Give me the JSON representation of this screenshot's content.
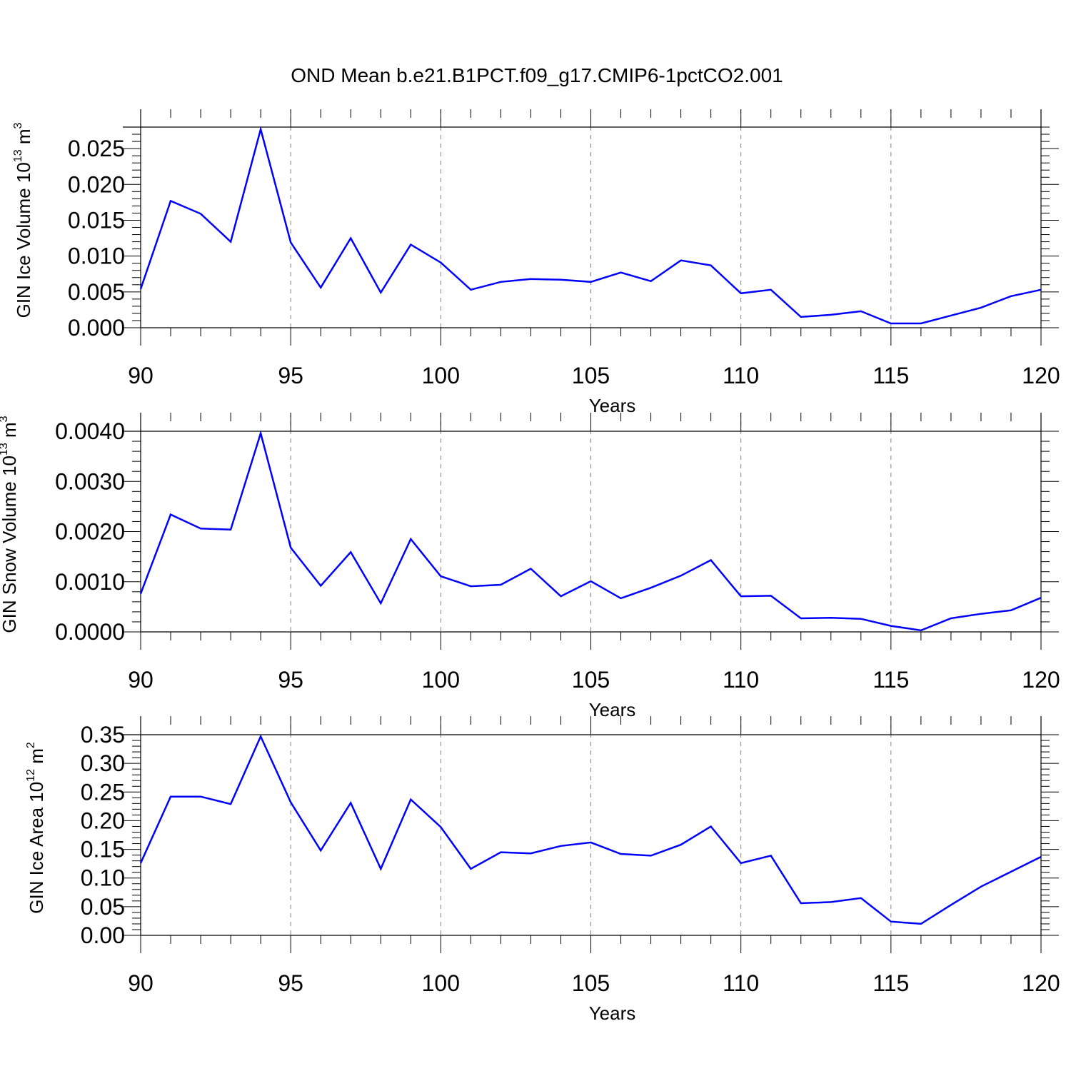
{
  "title": "OND Mean b.e21.B1PCT.f09_g17.CMIP6-1pctCO2.001",
  "colors": {
    "line": "#0000ff",
    "axis": "#000000",
    "grid": "#808080"
  },
  "chart_data": [
    {
      "type": "line",
      "ylabel": {
        "text": "GIN Ice Volume 10",
        "exp": "13",
        "unit": " m",
        "unit_exp": "3"
      },
      "xlabel": "Years",
      "xlim": [
        90,
        120
      ],
      "ylim": [
        0,
        0.028
      ],
      "xticks": [
        "90",
        "95",
        "100",
        "105",
        "110",
        "115",
        "120"
      ],
      "yticks": [
        "0.000",
        "0.005",
        "0.010",
        "0.015",
        "0.020",
        "0.025"
      ],
      "x": [
        90,
        91,
        92,
        93,
        94,
        95,
        96,
        97,
        98,
        99,
        100,
        101,
        102,
        103,
        104,
        105,
        106,
        107,
        108,
        109,
        110,
        111,
        112,
        113,
        114,
        115,
        116,
        117,
        118,
        119,
        120
      ],
      "values": [
        0.0054,
        0.0177,
        0.0159,
        0.012,
        0.0277,
        0.0119,
        0.0056,
        0.0125,
        0.0049,
        0.0116,
        0.0091,
        0.0053,
        0.0064,
        0.0068,
        0.0067,
        0.0064,
        0.0077,
        0.0065,
        0.0094,
        0.0087,
        0.0048,
        0.0053,
        0.0015,
        0.0018,
        0.0023,
        0.0006,
        0.0006,
        0.0017,
        0.0028,
        0.0044,
        0.0053
      ]
    },
    {
      "type": "line",
      "ylabel": {
        "text": "GIN Snow Volume 10",
        "exp": "13",
        "unit": " m",
        "unit_exp": "3"
      },
      "xlabel": "Years",
      "xlim": [
        90,
        120
      ],
      "ylim": [
        0,
        0.004
      ],
      "xticks": [
        "90",
        "95",
        "100",
        "105",
        "110",
        "115",
        "120"
      ],
      "yticks": [
        "0.0000",
        "0.0010",
        "0.0020",
        "0.0030",
        "0.0040"
      ],
      "x": [
        90,
        91,
        92,
        93,
        94,
        95,
        96,
        97,
        98,
        99,
        100,
        101,
        102,
        103,
        104,
        105,
        106,
        107,
        108,
        109,
        110,
        111,
        112,
        113,
        114,
        115,
        116,
        117,
        118,
        119,
        120
      ],
      "values": [
        0.00076,
        0.00234,
        0.00206,
        0.00204,
        0.00396,
        0.00168,
        0.00092,
        0.00159,
        0.00057,
        0.00185,
        0.00111,
        0.00091,
        0.00094,
        0.00126,
        0.00071,
        0.00101,
        0.00067,
        0.00088,
        0.00112,
        0.00143,
        0.00071,
        0.00072,
        0.00027,
        0.00028,
        0.00026,
        0.00012,
        3e-05,
        0.00027,
        0.00036,
        0.00043,
        0.00068
      ]
    },
    {
      "type": "line",
      "ylabel": {
        "text": "GIN Ice Area 10",
        "exp": "12",
        "unit": " m",
        "unit_exp": "2"
      },
      "xlabel": "Years",
      "xlim": [
        90,
        120
      ],
      "ylim": [
        0,
        0.35
      ],
      "xticks": [
        "90",
        "95",
        "100",
        "105",
        "110",
        "115",
        "120"
      ],
      "yticks": [
        "0.00",
        "0.05",
        "0.10",
        "0.15",
        "0.20",
        "0.25",
        "0.30",
        "0.35"
      ],
      "x": [
        90,
        91,
        92,
        93,
        94,
        95,
        96,
        97,
        98,
        99,
        100,
        101,
        102,
        103,
        104,
        105,
        106,
        107,
        108,
        109,
        110,
        111,
        112,
        113,
        114,
        115,
        116,
        117,
        118,
        119,
        120
      ],
      "values": [
        0.126,
        0.242,
        0.242,
        0.229,
        0.347,
        0.232,
        0.148,
        0.231,
        0.116,
        0.237,
        0.189,
        0.116,
        0.145,
        0.143,
        0.156,
        0.162,
        0.142,
        0.139,
        0.158,
        0.19,
        0.126,
        0.139,
        0.056,
        0.058,
        0.065,
        0.024,
        0.02,
        0.053,
        0.085,
        0.111,
        0.137
      ]
    }
  ]
}
